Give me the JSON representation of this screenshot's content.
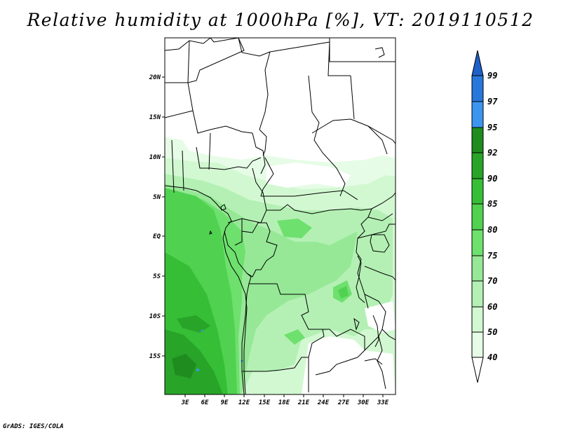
{
  "title": "Relative humidity at 1000hPa [%], VT: 2019110512",
  "footer": "GrADS: IGES/COLA",
  "map": {
    "lon_ticks": [
      "3E",
      "6E",
      "9E",
      "12E",
      "15E",
      "18E",
      "21E",
      "24E",
      "27E",
      "30E",
      "33E"
    ],
    "lat_ticks": [
      "20N",
      "15N",
      "10N",
      "5N",
      "EQ",
      "5S",
      "10S",
      "15S"
    ]
  },
  "colorbar": {
    "levels": [
      "99",
      "97",
      "95",
      "92",
      "90",
      "85",
      "80",
      "75",
      "70",
      "60",
      "50",
      "40"
    ],
    "colors": {
      "above_99": "#1e5fc8",
      "97_99": "#2878dc",
      "95_97": "#3c96f0",
      "92_95": "#1e8c1e",
      "90_92": "#28a428",
      "85_90": "#37be37",
      "80_85": "#50d250",
      "75_80": "#6ee06e",
      "70_75": "#96e896",
      "60_70": "#b4f0b4",
      "50_60": "#d2f8d2",
      "40_50": "#e6fce6",
      "below_40": "#ffffff"
    }
  }
}
